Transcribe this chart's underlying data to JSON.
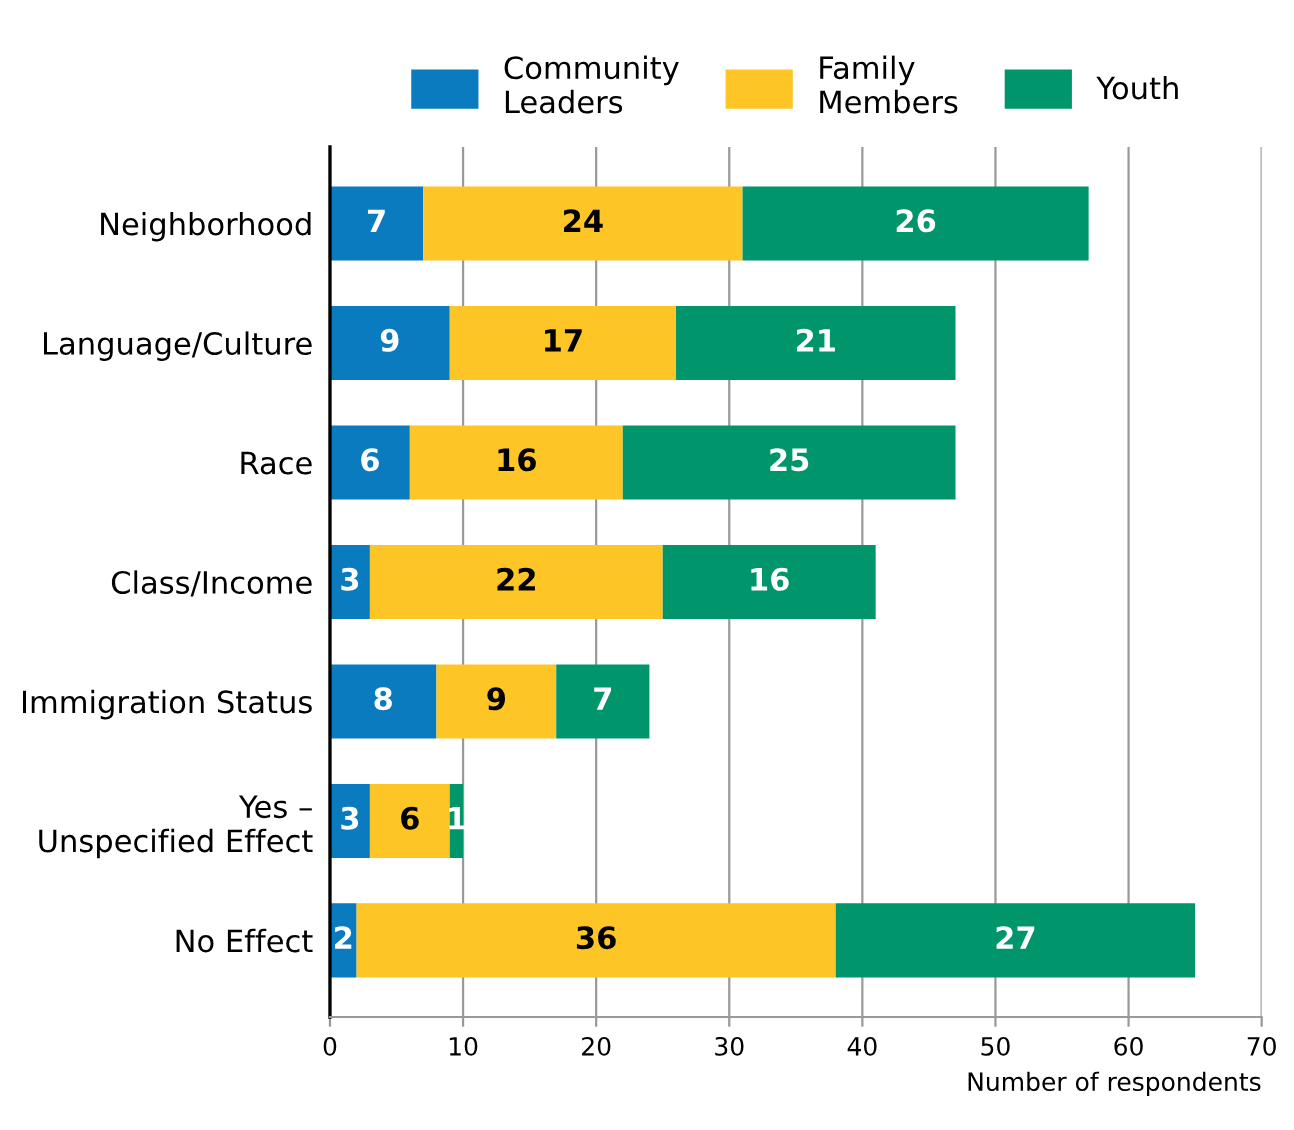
{
  "chart_data": {
    "type": "bar",
    "orientation": "horizontal",
    "stacked": true,
    "categories": [
      "Neighborhood",
      "Language/Culture",
      "Race",
      "Class/Income",
      "Immigration Status",
      "Yes –\nUnspecified Effect",
      "No Effect"
    ],
    "series": [
      {
        "name": "Community\nLeaders",
        "color": "#0a7bbf",
        "values": [
          7,
          9,
          6,
          3,
          8,
          3,
          2
        ]
      },
      {
        "name": "Family\nMembers",
        "color": "#fdc526",
        "values": [
          24,
          17,
          16,
          22,
          9,
          6,
          36
        ]
      },
      {
        "name": "Youth",
        "color": "#00956b",
        "values": [
          26,
          21,
          25,
          16,
          7,
          1,
          27
        ]
      }
    ],
    "xlabel": "Number of respondents",
    "xlim": [
      0,
      70
    ],
    "xticks": [
      0,
      10,
      20,
      30,
      40,
      50,
      60,
      70
    ],
    "grid": "x",
    "legend": "top",
    "data_labels": true
  }
}
